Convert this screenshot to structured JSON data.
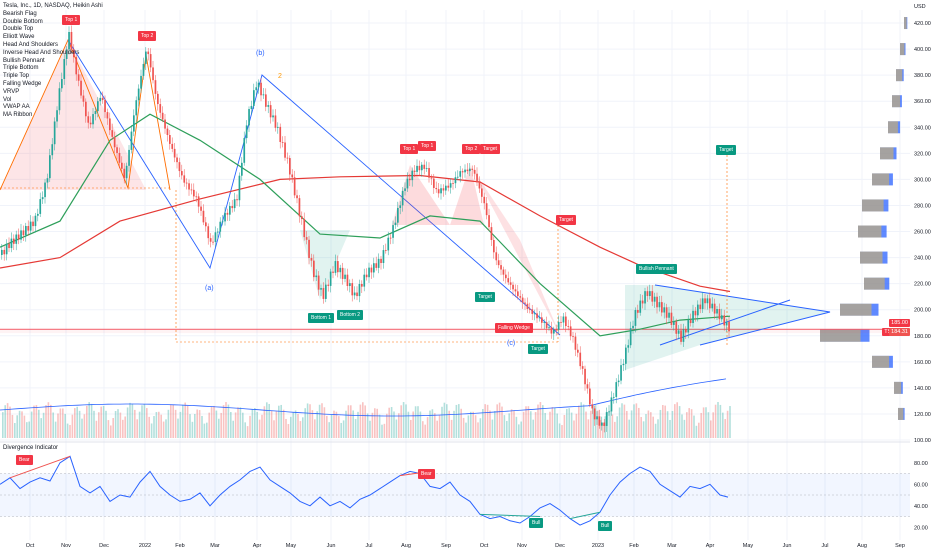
{
  "header": {
    "symbol_line": "Tesla, Inc., 1D, NASDAQ, Heikin Ashi",
    "currency": "USD"
  },
  "legend_items": [
    "Bearish Flag",
    "Double Bottom",
    "Double Top",
    "Elliott Wave",
    "Head And Shoulders",
    "Inverse Head And Shoulders",
    "Bullish Pennant",
    "Triple Bottom",
    "Triple Top",
    "Falling Wedge",
    "VRVP",
    "Vol",
    "VWAP AA",
    "MA Ribbon"
  ],
  "pattern_tags": {
    "top1_left": "Top 1",
    "top2_left": "Top 2",
    "top1_a": "Top 1",
    "top1_b": "Top 1",
    "top2_mid": "Top 2",
    "target_mid": "Target",
    "target_red": "Target",
    "target_green_right": "Target",
    "bullish_pennant": "Bullish Pennant",
    "target_green_a": "Target",
    "falling_wedge": "Falling Wedge",
    "target_green_b": "Target",
    "bottom1": "Bottom 1",
    "bottom2": "Bottom 2"
  },
  "wave_labels": {
    "b": "(b)",
    "a": "(a)",
    "c": "(c)",
    "two": "2"
  },
  "oscillator": {
    "title": "Divergence Indicator",
    "tags": {
      "bear1": "Bear",
      "bear2": "Bear",
      "bull1": "Bull",
      "bull2": "Bull"
    },
    "y_ticks": [
      "80.00",
      "60.00",
      "40.00",
      "20.00"
    ]
  },
  "price_tags": {
    "a": "185.00",
    "symbol": "TSLA",
    "b": "184.31"
  },
  "colors": {
    "up": "#26a69a",
    "down": "#ef5350",
    "ma_red": "#e53935",
    "ma_green": "#2e9f5a",
    "pattern_blue": "#2962ff",
    "pattern_orange": "#ff6d00",
    "rsi": "#2962ff",
    "vwap": "#2962ff"
  },
  "chart_data": {
    "type": "candlestick",
    "x_ticks": [
      "Oct",
      "Nov",
      "Dec",
      "2022",
      "Feb",
      "Mar",
      "Apr",
      "May",
      "Jun",
      "Jul",
      "Aug",
      "Sep",
      "Oct",
      "Nov",
      "Dec",
      "2023",
      "Feb",
      "Mar",
      "Apr",
      "May",
      "Jun",
      "Jul",
      "Aug",
      "Sep"
    ],
    "y_ticks": [
      "420.00",
      "400.00",
      "380.00",
      "360.00",
      "340.00",
      "320.00",
      "300.00",
      "280.00",
      "260.00",
      "240.00",
      "220.00",
      "200.00",
      "180.00",
      "160.00",
      "140.00",
      "120.00",
      "100.00"
    ],
    "ylim": [
      100,
      430
    ],
    "price_path": [
      [
        0,
        242
      ],
      [
        8,
        250
      ],
      [
        20,
        258
      ],
      [
        34,
        268
      ],
      [
        46,
        300
      ],
      [
        58,
        365
      ],
      [
        68,
        412
      ],
      [
        76,
        380
      ],
      [
        88,
        340
      ],
      [
        100,
        365
      ],
      [
        112,
        330
      ],
      [
        124,
        300
      ],
      [
        134,
        355
      ],
      [
        146,
        402
      ],
      [
        156,
        360
      ],
      [
        168,
        330
      ],
      [
        182,
        300
      ],
      [
        196,
        285
      ],
      [
        210,
        250
      ],
      [
        222,
        270
      ],
      [
        236,
        285
      ],
      [
        246,
        345
      ],
      [
        256,
        375
      ],
      [
        264,
        360
      ],
      [
        276,
        340
      ],
      [
        288,
        310
      ],
      [
        300,
        270
      ],
      [
        312,
        230
      ],
      [
        322,
        210
      ],
      [
        334,
        235
      ],
      [
        346,
        222
      ],
      [
        354,
        210
      ],
      [
        366,
        228
      ],
      [
        380,
        238
      ],
      [
        392,
        262
      ],
      [
        404,
        295
      ],
      [
        414,
        308
      ],
      [
        424,
        310
      ],
      [
        436,
        290
      ],
      [
        450,
        296
      ],
      [
        460,
        306
      ],
      [
        472,
        308
      ],
      [
        484,
        280
      ],
      [
        494,
        240
      ],
      [
        504,
        225
      ],
      [
        516,
        212
      ],
      [
        528,
        200
      ],
      [
        540,
        192
      ],
      [
        552,
        182
      ],
      [
        562,
        194
      ],
      [
        572,
        178
      ],
      [
        582,
        152
      ],
      [
        592,
        120
      ],
      [
        602,
        110
      ],
      [
        614,
        138
      ],
      [
        624,
        165
      ],
      [
        634,
        196
      ],
      [
        646,
        214
      ],
      [
        656,
        205
      ],
      [
        668,
        195
      ],
      [
        680,
        178
      ],
      [
        692,
        196
      ],
      [
        704,
        208
      ],
      [
        716,
        198
      ],
      [
        728,
        186
      ]
    ],
    "ma_red": [
      [
        0,
        232
      ],
      [
        60,
        240
      ],
      [
        120,
        268
      ],
      [
        200,
        285
      ],
      [
        280,
        300
      ],
      [
        340,
        302
      ],
      [
        420,
        303
      ],
      [
        480,
        298
      ],
      [
        540,
        272
      ],
      [
        600,
        248
      ],
      [
        640,
        234
      ],
      [
        700,
        218
      ],
      [
        730,
        214
      ]
    ],
    "ma_green": [
      [
        0,
        248
      ],
      [
        60,
        268
      ],
      [
        110,
        330
      ],
      [
        150,
        350
      ],
      [
        200,
        330
      ],
      [
        260,
        300
      ],
      [
        320,
        258
      ],
      [
        380,
        255
      ],
      [
        430,
        272
      ],
      [
        480,
        268
      ],
      [
        540,
        220
      ],
      [
        600,
        180
      ],
      [
        640,
        185
      ],
      [
        680,
        192
      ],
      [
        730,
        195
      ]
    ],
    "divergence_rsi": [
      [
        0,
        60
      ],
      [
        10,
        66
      ],
      [
        20,
        56
      ],
      [
        30,
        62
      ],
      [
        40,
        66
      ],
      [
        50,
        63
      ],
      [
        60,
        80
      ],
      [
        70,
        86
      ],
      [
        80,
        58
      ],
      [
        90,
        52
      ],
      [
        100,
        58
      ],
      [
        110,
        44
      ],
      [
        120,
        50
      ],
      [
        130,
        48
      ],
      [
        140,
        62
      ],
      [
        150,
        72
      ],
      [
        160,
        58
      ],
      [
        170,
        50
      ],
      [
        180,
        44
      ],
      [
        190,
        46
      ],
      [
        200,
        52
      ],
      [
        210,
        40
      ],
      [
        220,
        50
      ],
      [
        230,
        58
      ],
      [
        240,
        64
      ],
      [
        250,
        72
      ],
      [
        260,
        76
      ],
      [
        270,
        64
      ],
      [
        280,
        58
      ],
      [
        290,
        52
      ],
      [
        300,
        44
      ],
      [
        310,
        40
      ],
      [
        320,
        48
      ],
      [
        330,
        40
      ],
      [
        340,
        44
      ],
      [
        350,
        38
      ],
      [
        360,
        46
      ],
      [
        370,
        50
      ],
      [
        380,
        56
      ],
      [
        390,
        62
      ],
      [
        400,
        68
      ],
      [
        410,
        72
      ],
      [
        420,
        70
      ],
      [
        430,
        58
      ],
      [
        440,
        56
      ],
      [
        450,
        62
      ],
      [
        460,
        50
      ],
      [
        470,
        44
      ],
      [
        480,
        32
      ],
      [
        490,
        28
      ],
      [
        500,
        30
      ],
      [
        510,
        26
      ],
      [
        520,
        24
      ],
      [
        530,
        30
      ],
      [
        540,
        38
      ],
      [
        550,
        42
      ],
      [
        560,
        36
      ],
      [
        570,
        28
      ],
      [
        580,
        22
      ],
      [
        590,
        26
      ],
      [
        600,
        34
      ],
      [
        610,
        50
      ],
      [
        620,
        62
      ],
      [
        630,
        70
      ],
      [
        640,
        76
      ],
      [
        650,
        72
      ],
      [
        660,
        60
      ],
      [
        670,
        54
      ],
      [
        680,
        48
      ],
      [
        690,
        58
      ],
      [
        700,
        56
      ],
      [
        710,
        60
      ],
      [
        720,
        50
      ],
      [
        728,
        48
      ]
    ],
    "volume_profile_y": [
      420,
      400,
      380,
      360,
      340,
      320,
      300,
      280,
      260,
      240,
      220,
      200,
      180,
      160,
      140,
      120
    ]
  }
}
